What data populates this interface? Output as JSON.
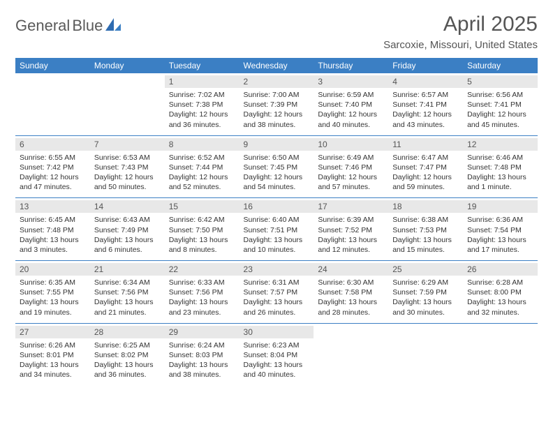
{
  "brand": {
    "word1": "General",
    "word2": "Blue",
    "accent": "#3b7fc4",
    "text_color": "#5a5a5a"
  },
  "title": "April 2025",
  "location": "Sarcoxie, Missouri, United States",
  "colors": {
    "header_bg": "#3b7fc4",
    "header_fg": "#ffffff",
    "daynum_bg": "#e8e8e8",
    "rule": "#3b7fc4",
    "body_text": "#333333"
  },
  "day_headers": [
    "Sunday",
    "Monday",
    "Tuesday",
    "Wednesday",
    "Thursday",
    "Friday",
    "Saturday"
  ],
  "weeks": [
    [
      {
        "day": "",
        "sunrise": "",
        "sunset": "",
        "daylight": ""
      },
      {
        "day": "",
        "sunrise": "",
        "sunset": "",
        "daylight": ""
      },
      {
        "day": "1",
        "sunrise": "Sunrise: 7:02 AM",
        "sunset": "Sunset: 7:38 PM",
        "daylight": "Daylight: 12 hours and 36 minutes."
      },
      {
        "day": "2",
        "sunrise": "Sunrise: 7:00 AM",
        "sunset": "Sunset: 7:39 PM",
        "daylight": "Daylight: 12 hours and 38 minutes."
      },
      {
        "day": "3",
        "sunrise": "Sunrise: 6:59 AM",
        "sunset": "Sunset: 7:40 PM",
        "daylight": "Daylight: 12 hours and 40 minutes."
      },
      {
        "day": "4",
        "sunrise": "Sunrise: 6:57 AM",
        "sunset": "Sunset: 7:41 PM",
        "daylight": "Daylight: 12 hours and 43 minutes."
      },
      {
        "day": "5",
        "sunrise": "Sunrise: 6:56 AM",
        "sunset": "Sunset: 7:41 PM",
        "daylight": "Daylight: 12 hours and 45 minutes."
      }
    ],
    [
      {
        "day": "6",
        "sunrise": "Sunrise: 6:55 AM",
        "sunset": "Sunset: 7:42 PM",
        "daylight": "Daylight: 12 hours and 47 minutes."
      },
      {
        "day": "7",
        "sunrise": "Sunrise: 6:53 AM",
        "sunset": "Sunset: 7:43 PM",
        "daylight": "Daylight: 12 hours and 50 minutes."
      },
      {
        "day": "8",
        "sunrise": "Sunrise: 6:52 AM",
        "sunset": "Sunset: 7:44 PM",
        "daylight": "Daylight: 12 hours and 52 minutes."
      },
      {
        "day": "9",
        "sunrise": "Sunrise: 6:50 AM",
        "sunset": "Sunset: 7:45 PM",
        "daylight": "Daylight: 12 hours and 54 minutes."
      },
      {
        "day": "10",
        "sunrise": "Sunrise: 6:49 AM",
        "sunset": "Sunset: 7:46 PM",
        "daylight": "Daylight: 12 hours and 57 minutes."
      },
      {
        "day": "11",
        "sunrise": "Sunrise: 6:47 AM",
        "sunset": "Sunset: 7:47 PM",
        "daylight": "Daylight: 12 hours and 59 minutes."
      },
      {
        "day": "12",
        "sunrise": "Sunrise: 6:46 AM",
        "sunset": "Sunset: 7:48 PM",
        "daylight": "Daylight: 13 hours and 1 minute."
      }
    ],
    [
      {
        "day": "13",
        "sunrise": "Sunrise: 6:45 AM",
        "sunset": "Sunset: 7:48 PM",
        "daylight": "Daylight: 13 hours and 3 minutes."
      },
      {
        "day": "14",
        "sunrise": "Sunrise: 6:43 AM",
        "sunset": "Sunset: 7:49 PM",
        "daylight": "Daylight: 13 hours and 6 minutes."
      },
      {
        "day": "15",
        "sunrise": "Sunrise: 6:42 AM",
        "sunset": "Sunset: 7:50 PM",
        "daylight": "Daylight: 13 hours and 8 minutes."
      },
      {
        "day": "16",
        "sunrise": "Sunrise: 6:40 AM",
        "sunset": "Sunset: 7:51 PM",
        "daylight": "Daylight: 13 hours and 10 minutes."
      },
      {
        "day": "17",
        "sunrise": "Sunrise: 6:39 AM",
        "sunset": "Sunset: 7:52 PM",
        "daylight": "Daylight: 13 hours and 12 minutes."
      },
      {
        "day": "18",
        "sunrise": "Sunrise: 6:38 AM",
        "sunset": "Sunset: 7:53 PM",
        "daylight": "Daylight: 13 hours and 15 minutes."
      },
      {
        "day": "19",
        "sunrise": "Sunrise: 6:36 AM",
        "sunset": "Sunset: 7:54 PM",
        "daylight": "Daylight: 13 hours and 17 minutes."
      }
    ],
    [
      {
        "day": "20",
        "sunrise": "Sunrise: 6:35 AM",
        "sunset": "Sunset: 7:55 PM",
        "daylight": "Daylight: 13 hours and 19 minutes."
      },
      {
        "day": "21",
        "sunrise": "Sunrise: 6:34 AM",
        "sunset": "Sunset: 7:56 PM",
        "daylight": "Daylight: 13 hours and 21 minutes."
      },
      {
        "day": "22",
        "sunrise": "Sunrise: 6:33 AM",
        "sunset": "Sunset: 7:56 PM",
        "daylight": "Daylight: 13 hours and 23 minutes."
      },
      {
        "day": "23",
        "sunrise": "Sunrise: 6:31 AM",
        "sunset": "Sunset: 7:57 PM",
        "daylight": "Daylight: 13 hours and 26 minutes."
      },
      {
        "day": "24",
        "sunrise": "Sunrise: 6:30 AM",
        "sunset": "Sunset: 7:58 PM",
        "daylight": "Daylight: 13 hours and 28 minutes."
      },
      {
        "day": "25",
        "sunrise": "Sunrise: 6:29 AM",
        "sunset": "Sunset: 7:59 PM",
        "daylight": "Daylight: 13 hours and 30 minutes."
      },
      {
        "day": "26",
        "sunrise": "Sunrise: 6:28 AM",
        "sunset": "Sunset: 8:00 PM",
        "daylight": "Daylight: 13 hours and 32 minutes."
      }
    ],
    [
      {
        "day": "27",
        "sunrise": "Sunrise: 6:26 AM",
        "sunset": "Sunset: 8:01 PM",
        "daylight": "Daylight: 13 hours and 34 minutes."
      },
      {
        "day": "28",
        "sunrise": "Sunrise: 6:25 AM",
        "sunset": "Sunset: 8:02 PM",
        "daylight": "Daylight: 13 hours and 36 minutes."
      },
      {
        "day": "29",
        "sunrise": "Sunrise: 6:24 AM",
        "sunset": "Sunset: 8:03 PM",
        "daylight": "Daylight: 13 hours and 38 minutes."
      },
      {
        "day": "30",
        "sunrise": "Sunrise: 6:23 AM",
        "sunset": "Sunset: 8:04 PM",
        "daylight": "Daylight: 13 hours and 40 minutes."
      },
      {
        "day": "",
        "sunrise": "",
        "sunset": "",
        "daylight": ""
      },
      {
        "day": "",
        "sunrise": "",
        "sunset": "",
        "daylight": ""
      },
      {
        "day": "",
        "sunrise": "",
        "sunset": "",
        "daylight": ""
      }
    ]
  ]
}
